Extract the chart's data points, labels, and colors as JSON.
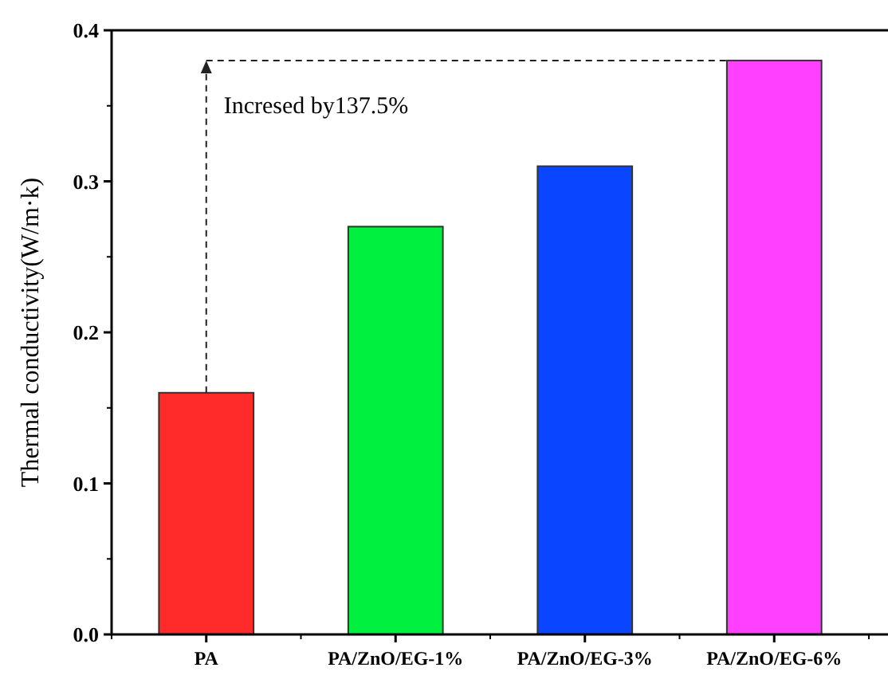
{
  "chart_data": {
    "type": "bar",
    "ylabel": "Thermal conductivity(W/m·k)",
    "categories": [
      "PA",
      "PA/ZnO/EG-1%",
      "PA/ZnO/EG-3%",
      "PA/ZnO/EG-6%"
    ],
    "values": [
      0.16,
      0.27,
      0.31,
      0.38
    ],
    "colors": [
      "#ff2a2a",
      "#00f040",
      "#0a45ff",
      "#ff40ff"
    ],
    "ylim": [
      0,
      0.4
    ],
    "yticks": [
      {
        "value": 0,
        "label": "0.0"
      },
      {
        "value": 0.1,
        "label": "0.1"
      },
      {
        "value": 0.2,
        "label": "0.2"
      },
      {
        "value": 0.3,
        "label": "0.3"
      },
      {
        "value": 0.4,
        "label": "0.4"
      }
    ],
    "annotations": [
      "Incresed by137.5%"
    ],
    "grid": false
  }
}
